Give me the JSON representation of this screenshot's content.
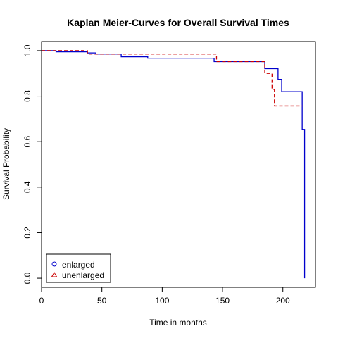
{
  "chart_data": {
    "type": "line",
    "title": "Kaplan Meier-Curves for Overall Survival Times",
    "xlabel": "Time in months",
    "ylabel": "Survival Probability",
    "xlim": [
      0,
      227
    ],
    "ylim": [
      -0.04,
      1.04
    ],
    "x_ticks": [
      0,
      50,
      100,
      150,
      200
    ],
    "y_ticks": [
      0.0,
      0.2,
      0.4,
      0.6,
      0.8,
      1.0
    ],
    "grid": false,
    "legend_position": "bottom-left",
    "series": [
      {
        "name": "enlarged",
        "color": "#0000cc",
        "line_style": "solid",
        "legend_marker": "circle",
        "x": [
          0,
          12,
          38,
          45,
          66,
          88,
          143,
          185,
          196,
          199,
          203,
          216,
          218
        ],
        "y": [
          1.0,
          0.995,
          0.99,
          0.985,
          0.973,
          0.967,
          0.952,
          0.921,
          0.874,
          0.82,
          0.82,
          0.654,
          0.0
        ]
      },
      {
        "name": "unenlarged",
        "color": "#cc0000",
        "line_style": "dashed",
        "legend_marker": "triangle",
        "x": [
          0,
          12,
          38,
          145,
          185,
          191,
          193,
          216
        ],
        "y": [
          1.0,
          1.0,
          0.985,
          0.952,
          0.9,
          0.83,
          0.757,
          0.757
        ]
      }
    ]
  }
}
